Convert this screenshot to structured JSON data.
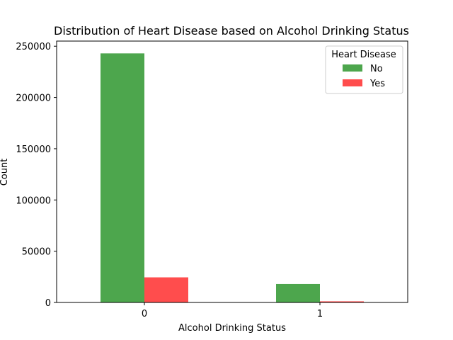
{
  "chart_data": {
    "type": "bar",
    "title": "Distribution of Heart Disease based on Alcohol Drinking Status",
    "xlabel": "Alcohol Drinking Status",
    "ylabel": "Count",
    "categories": [
      "0",
      "1"
    ],
    "series": [
      {
        "name": "No",
        "values": [
          243000,
          18000
        ]
      },
      {
        "name": "Yes",
        "values": [
          24500,
          1100
        ]
      }
    ],
    "ylim": [
      0,
      255000
    ],
    "yticks": [
      0,
      50000,
      100000,
      150000,
      200000,
      250000
    ],
    "ytick_labels": [
      "0",
      "50000",
      "100000",
      "150000",
      "200000",
      "250000"
    ],
    "legend_title": "Heart Disease",
    "legend_position": "top-right",
    "grid": false,
    "colors": [
      "#4da64d",
      "#ff4d4d"
    ]
  }
}
